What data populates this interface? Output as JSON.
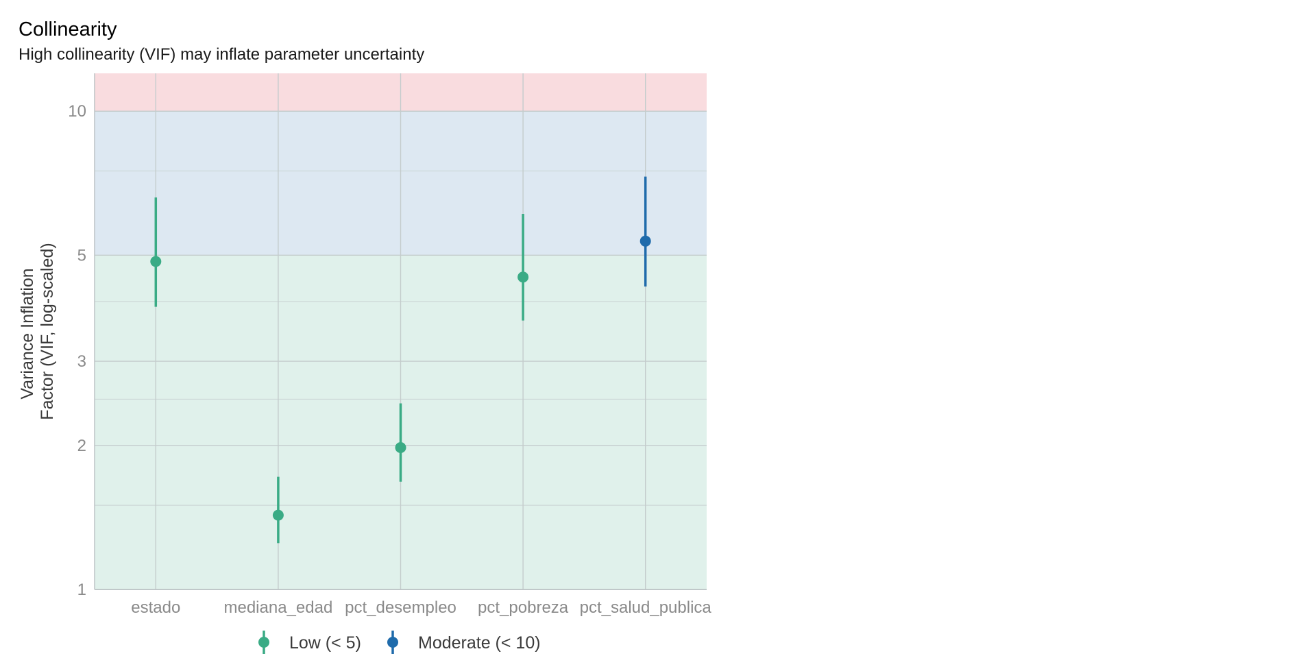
{
  "chart_data": {
    "type": "scatter",
    "title": "Collinearity",
    "subtitle": "High collinearity (VIF) may inflate parameter uncertainty",
    "xlabel": "",
    "ylabel_lines": [
      "Variance Inflation",
      "Factor (VIF, log-scaled)"
    ],
    "y_scale": "log",
    "ylim": [
      1,
      12
    ],
    "y_ticks": [
      1,
      2,
      3,
      5,
      10
    ],
    "y_tick_labels": [
      "1",
      "2",
      "3",
      "5",
      "10"
    ],
    "y_minor_grid": [
      1.5,
      2.5,
      4,
      7.5
    ],
    "grid": true,
    "categories": [
      "estado",
      "mediana_edad",
      "pct_desempleo",
      "pct_pobreza",
      "pct_salud_publica"
    ],
    "points": [
      {
        "term": "estado",
        "vif": 4.85,
        "ci_low": 3.9,
        "ci_high": 6.6,
        "group": "Low (< 5)"
      },
      {
        "term": "mediana_edad",
        "vif": 1.43,
        "ci_low": 1.25,
        "ci_high": 1.72,
        "group": "Low (< 5)"
      },
      {
        "term": "pct_desempleo",
        "vif": 1.98,
        "ci_low": 1.68,
        "ci_high": 2.45,
        "group": "Low (< 5)"
      },
      {
        "term": "pct_pobreza",
        "vif": 4.5,
        "ci_low": 3.65,
        "ci_high": 6.1,
        "group": "Low (< 5)"
      },
      {
        "term": "pct_salud_publica",
        "vif": 5.35,
        "ci_low": 4.3,
        "ci_high": 7.3,
        "group": "Moderate (< 10)"
      }
    ],
    "bands": [
      {
        "from": 1,
        "to": 5,
        "color": "#e0f1eb"
      },
      {
        "from": 5,
        "to": 10,
        "color": "#dde8f2"
      },
      {
        "from": 10,
        "to": 12,
        "color": "#f9dcdf"
      }
    ],
    "legend": {
      "position": "bottom",
      "entries": [
        {
          "label": "Low (< 5)",
          "color": "#3aab85"
        },
        {
          "label": "Moderate (< 10)",
          "color": "#1f6bab"
        }
      ]
    }
  }
}
